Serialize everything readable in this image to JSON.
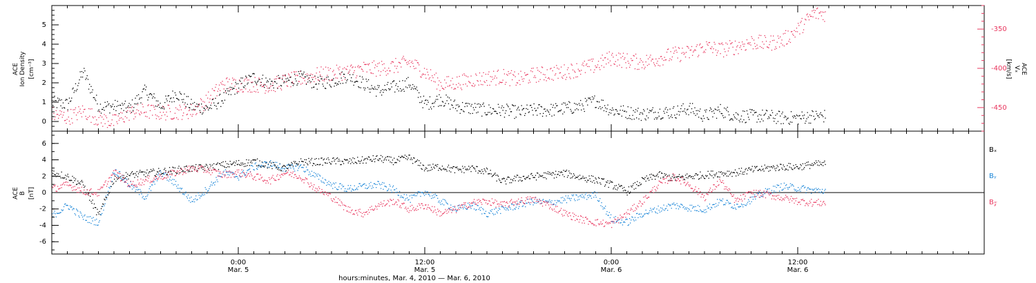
{
  "colors": {
    "black": "#000000",
    "pink": "#e8365e",
    "blue": "#1b86d8"
  },
  "chart_data": [
    {
      "type": "scatter",
      "panel": "top",
      "left_axis": {
        "label_lines": [
          "ACE",
          "Ion Density"
        ],
        "unit": "[cm⁻³]",
        "ylim": [
          -0.5,
          6
        ],
        "ticks": [
          "0",
          "1",
          "2",
          "3",
          "4",
          "5"
        ]
      },
      "right_axis": {
        "label_lines": [
          "ACE",
          "Vₓ"
        ],
        "unit": "[km/s]",
        "ylim": [
          -480,
          -320
        ],
        "ticks": [
          "-350",
          "-400",
          "-450"
        ]
      },
      "xlim_hours": [
        -12,
        48
      ],
      "series": [
        {
          "color": "#000000",
          "axis": "left",
          "x": [
            -12,
            -11,
            -10,
            -9,
            -8,
            -7,
            -6,
            -5,
            -4,
            -3,
            -2,
            -1,
            0,
            1,
            2,
            3,
            4,
            5,
            6,
            7,
            8,
            9,
            10,
            11,
            12,
            13,
            14,
            15,
            16,
            17,
            18,
            19,
            20,
            21,
            22,
            23,
            24,
            25,
            26,
            27,
            28,
            29,
            30,
            31,
            32,
            33,
            34,
            35,
            36,
            37
          ],
          "y": [
            1.0,
            0.9,
            2.6,
            0.8,
            0.8,
            0.7,
            1.6,
            0.8,
            1.5,
            0.8,
            0.7,
            1.2,
            1.9,
            2.3,
            2.0,
            2.1,
            2.3,
            2.0,
            2.1,
            2.4,
            2.0,
            1.6,
            1.8,
            2.0,
            0.9,
            1.2,
            0.8,
            0.7,
            0.6,
            0.6,
            0.5,
            0.6,
            0.6,
            0.7,
            0.8,
            1.1,
            0.6,
            0.5,
            0.4,
            0.5,
            0.5,
            0.7,
            0.3,
            0.6,
            0.3,
            0.3,
            0.3,
            0.2,
            0.2,
            0.3
          ]
        },
        {
          "color": "#e8365e",
          "axis": "right",
          "x": [
            -12,
            -11,
            -10,
            -9,
            -8,
            -7,
            -6,
            -5,
            -4,
            -3,
            -2,
            -1,
            0,
            1,
            2,
            3,
            4,
            5,
            6,
            7,
            8,
            9,
            10,
            11,
            12,
            13,
            14,
            15,
            16,
            17,
            18,
            19,
            20,
            21,
            22,
            23,
            24,
            25,
            26,
            27,
            28,
            29,
            30,
            31,
            32,
            33,
            34,
            35,
            36,
            37
          ],
          "y": [
            -458,
            -462,
            -454,
            -464,
            -468,
            -456,
            -454,
            -456,
            -455,
            -454,
            -440,
            -420,
            -420,
            -420,
            -422,
            -416,
            -412,
            -408,
            -406,
            -404,
            -400,
            -400,
            -397,
            -392,
            -404,
            -420,
            -418,
            -414,
            -412,
            -410,
            -414,
            -408,
            -406,
            -404,
            -400,
            -396,
            -386,
            -390,
            -392,
            -387,
            -382,
            -380,
            -372,
            -376,
            -372,
            -366,
            -368,
            -364,
            -350,
            -330
          ]
        }
      ]
    },
    {
      "type": "scatter",
      "panel": "bottom",
      "left_axis": {
        "label_lines": [
          "ACE",
          "B"
        ],
        "unit": "[nT]",
        "ylim": [
          -7.5,
          7.5
        ],
        "ticks": [
          "6",
          "4",
          "2",
          "0",
          "-2",
          "-4",
          "-6"
        ]
      },
      "xlim_hours": [
        -12,
        48
      ],
      "legend": [
        "Bₓ",
        "Bᵧ",
        "B𝓏"
      ],
      "legend_placement": "right",
      "series": [
        {
          "name": "Bₓ",
          "color": "#000000",
          "x": [
            -12,
            -11,
            -10,
            -9,
            -8,
            -7,
            -6,
            -5,
            -4,
            -3,
            -2,
            -1,
            0,
            1,
            2,
            3,
            4,
            5,
            6,
            7,
            8,
            9,
            10,
            11,
            12,
            13,
            14,
            15,
            16,
            17,
            18,
            19,
            20,
            21,
            22,
            23,
            24,
            25,
            26,
            27,
            28,
            29,
            30,
            31,
            32,
            33,
            34,
            35,
            36,
            37
          ],
          "y": [
            2.5,
            2.0,
            1.0,
            -2.8,
            1.8,
            2.2,
            2.4,
            2.6,
            2.8,
            3.0,
            3.1,
            3.4,
            3.6,
            3.8,
            3.4,
            3.0,
            3.8,
            3.8,
            3.9,
            3.8,
            4.0,
            4.2,
            3.9,
            4.3,
            3.0,
            3.2,
            2.8,
            3.0,
            2.6,
            1.4,
            1.8,
            2.0,
            2.2,
            2.4,
            1.9,
            1.6,
            1.0,
            0.2,
            1.5,
            2.2,
            1.8,
            2.0,
            2.2,
            2.4,
            2.5,
            2.8,
            3.0,
            3.2,
            3.2,
            3.5
          ]
        },
        {
          "name": "Bᵧ",
          "color": "#1b86d8",
          "x": [
            -12,
            -11,
            -10,
            -9,
            -8,
            -7,
            -6,
            -5,
            -4,
            -3,
            -2,
            -1,
            0,
            1,
            2,
            3,
            4,
            5,
            6,
            7,
            8,
            9,
            10,
            11,
            12,
            13,
            14,
            15,
            16,
            17,
            18,
            19,
            20,
            21,
            22,
            23,
            24,
            25,
            26,
            27,
            28,
            29,
            30,
            31,
            32,
            33,
            34,
            35,
            36,
            37
          ],
          "y": [
            -2.8,
            -1.5,
            -3.0,
            -3.6,
            2.8,
            1.0,
            -0.5,
            2.5,
            1.0,
            -1.0,
            0.5,
            2.5,
            2.0,
            3.2,
            3.6,
            3.0,
            3.2,
            2.0,
            1.0,
            0.5,
            0.8,
            1.0,
            0.4,
            -0.8,
            0.2,
            -1.0,
            -2.0,
            -1.5,
            -2.5,
            -2.0,
            -1.5,
            -1.0,
            -1.2,
            -0.8,
            -0.5,
            -0.2,
            -3.2,
            -3.6,
            -2.5,
            -2.0,
            -1.5,
            -1.8,
            -2.0,
            -1.0,
            -1.6,
            -0.8,
            0.2,
            0.8,
            0.6,
            0.3
          ]
        },
        {
          "name": "B𝓏",
          "color": "#e8365e",
          "x": [
            -12,
            -11,
            -10,
            -9,
            -8,
            -7,
            -6,
            -5,
            -4,
            -3,
            -2,
            -1,
            0,
            1,
            2,
            3,
            4,
            5,
            6,
            7,
            8,
            9,
            10,
            11,
            12,
            13,
            14,
            15,
            16,
            17,
            18,
            19,
            20,
            21,
            22,
            23,
            24,
            25,
            26,
            27,
            28,
            29,
            30,
            31,
            32,
            33,
            34,
            35,
            36,
            37
          ],
          "y": [
            0.5,
            1.0,
            0.2,
            0.0,
            2.5,
            1.0,
            1.5,
            2.0,
            2.5,
            3.0,
            2.8,
            2.2,
            2.5,
            2.0,
            1.5,
            2.5,
            2.0,
            0.5,
            -0.5,
            -2.0,
            -2.5,
            -1.5,
            -1.0,
            -2.0,
            -1.5,
            -2.5,
            -2.0,
            -1.2,
            -1.0,
            -1.5,
            -1.0,
            -0.8,
            -1.5,
            -2.5,
            -3.2,
            -3.6,
            -3.8,
            -2.5,
            -1.0,
            1.0,
            2.0,
            1.0,
            -0.5,
            1.5,
            -1.0,
            0.0,
            -0.2,
            -0.6,
            -1.0,
            -1.2
          ]
        }
      ]
    }
  ],
  "x_axis": {
    "ticks": [
      {
        "hours": 0,
        "time": "0:00",
        "date": "Mar. 5"
      },
      {
        "hours": 12,
        "time": "12:00",
        "date": "Mar. 5"
      },
      {
        "hours": 24,
        "time": "0:00",
        "date": "Mar. 6"
      },
      {
        "hours": 36,
        "time": "12:00",
        "date": "Mar. 6"
      }
    ],
    "label": "hours:minutes, Mar.  4, 2010 — Mar.  6, 2010"
  }
}
